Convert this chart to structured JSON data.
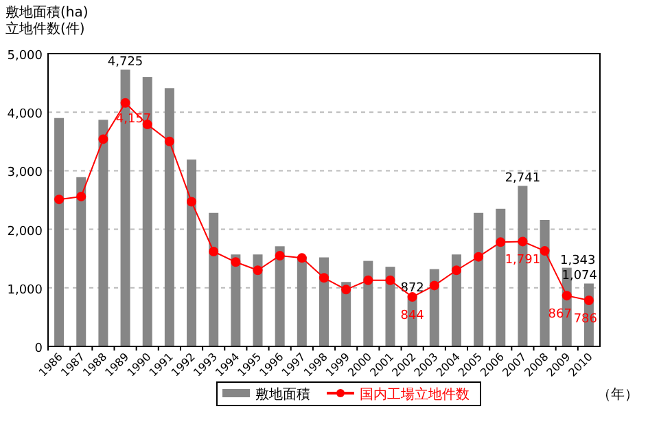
{
  "chart_data": {
    "type": "bar",
    "ylabel": "敷地面積(ha)\n立地件数(件)",
    "categories": [
      "1986",
      "1987",
      "1988",
      "1989",
      "1990",
      "1991",
      "1992",
      "1993",
      "1994",
      "1995",
      "1996",
      "1997",
      "1998",
      "1999",
      "2000",
      "2001",
      "2002",
      "2003",
      "2004",
      "2005",
      "2006",
      "2007",
      "2008",
      "2009",
      "2010"
    ],
    "series": [
      {
        "name": "敷地面積",
        "color": "#868686",
        "values": [
          3900,
          2890,
          3870,
          4725,
          4600,
          4410,
          3190,
          2280,
          1570,
          1570,
          1710,
          1530,
          1520,
          1100,
          1460,
          1360,
          872,
          1320,
          1570,
          2280,
          2350,
          2741,
          2160,
          1343,
          1074
        ],
        "value_labels": [
          null,
          null,
          null,
          "4,725",
          null,
          null,
          null,
          null,
          null,
          null,
          null,
          null,
          null,
          null,
          null,
          null,
          "872",
          null,
          null,
          null,
          null,
          "2,741",
          null,
          "1,343",
          "1,074"
        ]
      },
      {
        "name": "国内工場立地件数",
        "type": "line",
        "color": "#ff0000",
        "marker": "circle",
        "values": [
          2510,
          2560,
          3540,
          4157,
          3790,
          3500,
          2470,
          1620,
          1440,
          1300,
          1550,
          1510,
          1170,
          970,
          1130,
          1130,
          844,
          1040,
          1300,
          1530,
          1780,
          1791,
          1630,
          867,
          786
        ],
        "value_labels": [
          null,
          null,
          null,
          "4,157",
          null,
          null,
          null,
          null,
          null,
          null,
          null,
          null,
          null,
          null,
          null,
          null,
          "844",
          null,
          null,
          null,
          null,
          "1,791",
          null,
          "867",
          "786"
        ]
      }
    ],
    "ylim": [
      0,
      5000
    ],
    "yticks": [
      {
        "value": 0,
        "label": "0"
      },
      {
        "value": 1000,
        "label": "1,000"
      },
      {
        "value": 2000,
        "label": "2,000"
      },
      {
        "value": 3000,
        "label": "3,000"
      },
      {
        "value": 4000,
        "label": "4,000"
      },
      {
        "value": 5000,
        "label": "5,000"
      }
    ],
    "grid": "y",
    "legend": "bottom",
    "annotations": [
      "（年）"
    ]
  }
}
